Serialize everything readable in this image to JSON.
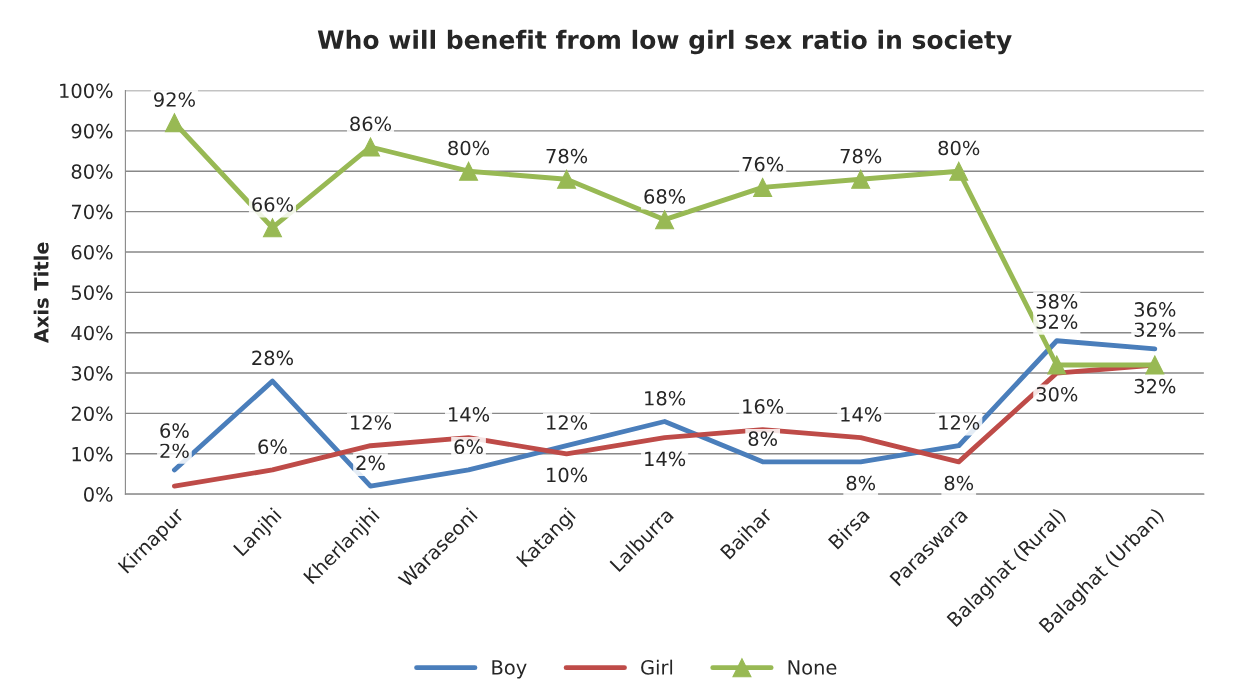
{
  "chart_data": {
    "type": "line",
    "title": "Who will benefit from low girl sex ratio in society",
    "ylabel": "Axis Title",
    "categories": [
      "Kirnapur",
      "Lanjhi",
      "Kherlanjhi",
      "Waraseoni",
      "Katangi",
      "Lalburra",
      "Baihar",
      "Birsa",
      "Paraswara",
      "Balaghat (Rural)",
      "Balaghat (Urban)"
    ],
    "series": [
      {
        "name": "Boy",
        "color": "#4a7ebb",
        "marker": "none",
        "values": [
          6,
          28,
          2,
          6,
          12,
          18,
          8,
          8,
          12,
          38,
          36
        ],
        "value_labels": [
          "6%",
          "28%",
          "2%",
          "6%",
          "12%",
          "18%",
          "8%",
          "8%",
          "12%",
          "38%",
          "36%"
        ]
      },
      {
        "name": "Girl",
        "color": "#be4b48",
        "marker": "none",
        "values": [
          2,
          6,
          12,
          14,
          10,
          14,
          16,
          14,
          8,
          30,
          32
        ],
        "value_labels": [
          "2%",
          "6%",
          "12%",
          "14%",
          "10%",
          "14%",
          "16%",
          "14%",
          "8%",
          "30%",
          "32%"
        ]
      },
      {
        "name": "None",
        "color": "#98b954",
        "marker": "triangle",
        "values": [
          92,
          66,
          86,
          80,
          78,
          68,
          76,
          78,
          80,
          32,
          32
        ],
        "value_labels": [
          "92%",
          "66%",
          "86%",
          "80%",
          "78%",
          "68%",
          "76%",
          "78%",
          "80%",
          "32%",
          "32%"
        ]
      }
    ],
    "ylim": [
      0,
      100
    ],
    "yticks": [
      {
        "value": 0,
        "label": "0%"
      },
      {
        "value": 10,
        "label": "10%"
      },
      {
        "value": 20,
        "label": "20%"
      },
      {
        "value": 30,
        "label": "30%"
      },
      {
        "value": 40,
        "label": "40%"
      },
      {
        "value": 50,
        "label": "50%"
      },
      {
        "value": 60,
        "label": "60%"
      },
      {
        "value": 70,
        "label": "70%"
      },
      {
        "value": 80,
        "label": "80%"
      },
      {
        "value": 90,
        "label": "90%"
      },
      {
        "value": 100,
        "label": "100%"
      }
    ],
    "grid": "y",
    "legend": "bottom",
    "line_style": "solid"
  }
}
